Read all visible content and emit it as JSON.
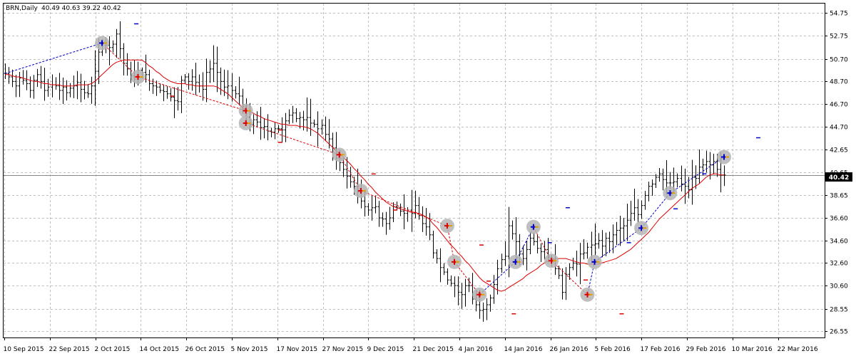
{
  "window": {
    "symbol": "BRN,Daily",
    "ohlc": "40.49 40.63 39.22 40.42"
  },
  "colors": {
    "bar": "#000000",
    "grid": "#c0c0c0",
    "ma": "#dd0000",
    "zigzag_up": "#0000cc",
    "zigzag_down": "#dd0000",
    "marker_halo": "#b4b4b4",
    "price_tag_bg": "#000000",
    "price_tag_text": "#ffffff"
  },
  "chart_data": {
    "type": "bar",
    "style": "ohlc",
    "price_ticks": [
      "54.75",
      "52.75",
      "50.70",
      "48.70",
      "46.70",
      "44.70",
      "42.65",
      "40.65",
      "38.65",
      "36.60",
      "34.60",
      "32.60",
      "30.60",
      "28.55",
      "26.55"
    ],
    "date_ticks": [
      "10 Sep 2015",
      "22 Sep 2015",
      "2 Oct 2015",
      "14 Oct 2015",
      "26 Oct 2015",
      "5 Nov 2015",
      "17 Nov 2015",
      "27 Nov 2015",
      "9 Dec 2015",
      "21 Dec 2015",
      "4 Jan 2016",
      "14 Jan 2016",
      "26 Jan 2016",
      "5 Feb 2016",
      "17 Feb 2016",
      "29 Feb 2016",
      "10 Mar 2016",
      "22 Mar 2016"
    ],
    "ylim": [
      26.0,
      55.6
    ],
    "current_price": "40.42",
    "grid": true,
    "close": [
      49.4,
      49.1,
      48.7,
      48.3,
      49.0,
      48.8,
      48.5,
      47.9,
      48.8,
      49.3,
      48.7,
      47.9,
      48.2,
      48.4,
      48.3,
      47.9,
      48.2,
      47.7,
      48.1,
      48.3,
      48.6,
      48.0,
      47.7,
      47.6,
      48.3,
      49.6,
      51.3,
      52.1,
      51.9,
      51.7,
      52.0,
      52.9,
      51.6,
      50.3,
      49.8,
      49.2,
      48.9,
      49.7,
      49.5,
      49.3,
      48.5,
      48.3,
      48.2,
      47.9,
      47.8,
      47.6,
      47.3,
      47.0,
      46.9,
      48.8,
      49.1,
      48.7,
      49.1,
      48.6,
      48.3,
      48.0,
      49.5,
      49.8,
      50.3,
      49.5,
      48.7,
      48.2,
      48.3,
      47.9,
      47.6,
      47.4,
      46.5,
      45.5,
      44.9,
      45.3,
      45.1,
      44.6,
      44.7,
      44.3,
      44.2,
      44.5,
      44.5,
      44.4,
      45.2,
      45.7,
      45.9,
      45.4,
      45.5,
      45.3,
      45.5,
      45.0,
      44.9,
      44.5,
      44.8,
      44.0,
      43.6,
      42.8,
      41.9,
      41.5,
      40.9,
      40.3,
      39.8,
      39.4,
      38.9,
      38.1,
      37.6,
      37.3,
      37.5,
      37.6,
      36.6,
      36.5,
      36.1,
      36.6,
      37.6,
      37.5,
      37.2,
      37.0,
      37.3,
      37.0,
      37.7,
      36.8,
      36.1,
      35.8,
      35.1,
      33.5,
      33.0,
      32.2,
      31.8,
      31.1,
      30.8,
      30.6,
      30.0,
      29.8,
      30.6,
      30.6,
      29.4,
      28.9,
      28.4,
      28.5,
      28.9,
      29.5,
      30.7,
      32.1,
      32.9,
      33.2,
      35.9,
      35.2,
      34.5,
      33.4,
      33.0,
      33.8,
      34.8,
      34.5,
      33.9,
      33.6,
      33.8,
      33.1,
      32.9,
      32.1,
      31.5,
      30.0,
      31.6,
      32.2,
      32.6,
      32.5,
      33.4,
      33.5,
      34.0,
      34.2,
      34.3,
      34.6,
      34.1,
      34.8,
      34.5,
      35.1,
      35.5,
      35.7,
      35.9,
      36.4,
      37.0,
      37.5,
      36.9,
      37.7,
      38.6,
      39.4,
      39.6,
      40.2,
      40.5,
      40.0,
      39.7,
      39.7,
      39.8,
      40.1,
      39.6,
      39.4,
      39.1,
      40.2,
      40.1,
      41.1,
      41.3,
      41.6,
      41.3,
      41.6,
      40.9,
      40.4,
      40.4
    ],
    "moving_average": [
      49.3,
      49.3,
      49.2,
      49.1,
      49.1,
      49.0,
      48.9,
      48.8,
      48.7,
      48.7,
      48.6,
      48.5,
      48.5,
      48.4,
      48.4,
      48.4,
      48.3,
      48.3,
      48.3,
      48.3,
      48.4,
      48.4,
      48.4,
      48.4,
      48.5,
      48.7,
      49.0,
      49.3,
      49.6,
      49.9,
      50.2,
      50.4,
      50.5,
      50.6,
      50.6,
      50.6,
      50.6,
      50.6,
      50.6,
      50.4,
      50.1,
      49.9,
      49.6,
      49.4,
      49.1,
      48.9,
      48.7,
      48.6,
      48.5,
      48.5,
      48.5,
      48.4,
      48.4,
      48.3,
      48.3,
      48.3,
      48.3,
      48.3,
      48.3,
      48.2,
      48.0,
      47.8,
      47.6,
      47.3,
      47.0,
      46.7,
      46.4,
      46.2,
      46.0,
      45.9,
      45.7,
      45.6,
      45.4,
      45.3,
      45.2,
      45.1,
      45.0,
      44.9,
      44.9,
      44.8,
      44.8,
      44.8,
      44.7,
      44.7,
      44.6,
      44.5,
      44.3,
      44.1,
      43.8,
      43.5,
      43.2,
      42.9,
      42.6,
      42.3,
      42.0,
      41.7,
      41.4,
      41.0,
      40.7,
      40.3,
      40.0,
      39.6,
      39.3,
      38.9,
      38.6,
      38.3,
      38.0,
      37.8,
      37.6,
      37.5,
      37.4,
      37.3,
      37.2,
      37.1,
      37.1,
      37.0,
      36.9,
      36.7,
      36.5,
      36.1,
      35.8,
      35.4,
      35.0,
      34.6,
      34.2,
      33.9,
      33.5,
      33.2,
      32.8,
      32.5,
      32.1,
      31.7,
      31.3,
      31.0,
      30.8,
      30.6,
      30.4,
      30.2,
      30.1,
      30.2,
      30.4,
      30.6,
      30.8,
      31.0,
      31.2,
      31.5,
      31.7,
      31.9,
      32.1,
      32.4,
      32.6,
      32.8,
      33.0,
      33.0,
      33.0,
      33.0,
      33.0,
      32.9,
      32.8,
      32.7,
      32.6,
      32.6,
      32.5,
      32.5,
      32.5,
      32.5,
      32.6,
      32.7,
      32.8,
      32.9,
      33.0,
      33.2,
      33.4,
      33.6,
      33.8,
      34.1,
      34.4,
      34.7,
      35.0,
      35.3,
      35.7,
      36.1,
      36.5,
      36.8,
      37.1,
      37.4,
      37.7,
      38.0,
      38.3,
      38.6,
      38.9,
      39.2,
      39.4,
      39.6,
      39.9,
      40.2,
      40.4,
      40.5,
      40.5,
      40.4,
      40.4
    ],
    "zigzag": [
      {
        "bar": 0,
        "price": 49.4
      },
      {
        "bar": 27,
        "price": 52.1
      },
      {
        "bar": 37,
        "price": 49.1
      },
      {
        "bar": 67,
        "price": 46.1
      },
      {
        "bar": 67,
        "price": 45.0
      },
      {
        "bar": 93,
        "price": 42.2
      },
      {
        "bar": 99,
        "price": 39.0
      },
      {
        "bar": 123,
        "price": 35.9
      },
      {
        "bar": 125,
        "price": 32.7
      },
      {
        "bar": 132,
        "price": 29.8
      },
      {
        "bar": 142,
        "price": 32.7
      },
      {
        "bar": 147,
        "price": 35.8
      },
      {
        "bar": 152,
        "price": 32.8
      },
      {
        "bar": 162,
        "price": 29.8
      },
      {
        "bar": 164,
        "price": 32.7
      },
      {
        "bar": 177,
        "price": 35.7
      },
      {
        "bar": 185,
        "price": 38.8
      },
      {
        "bar": 200,
        "price": 42.0
      }
    ]
  }
}
